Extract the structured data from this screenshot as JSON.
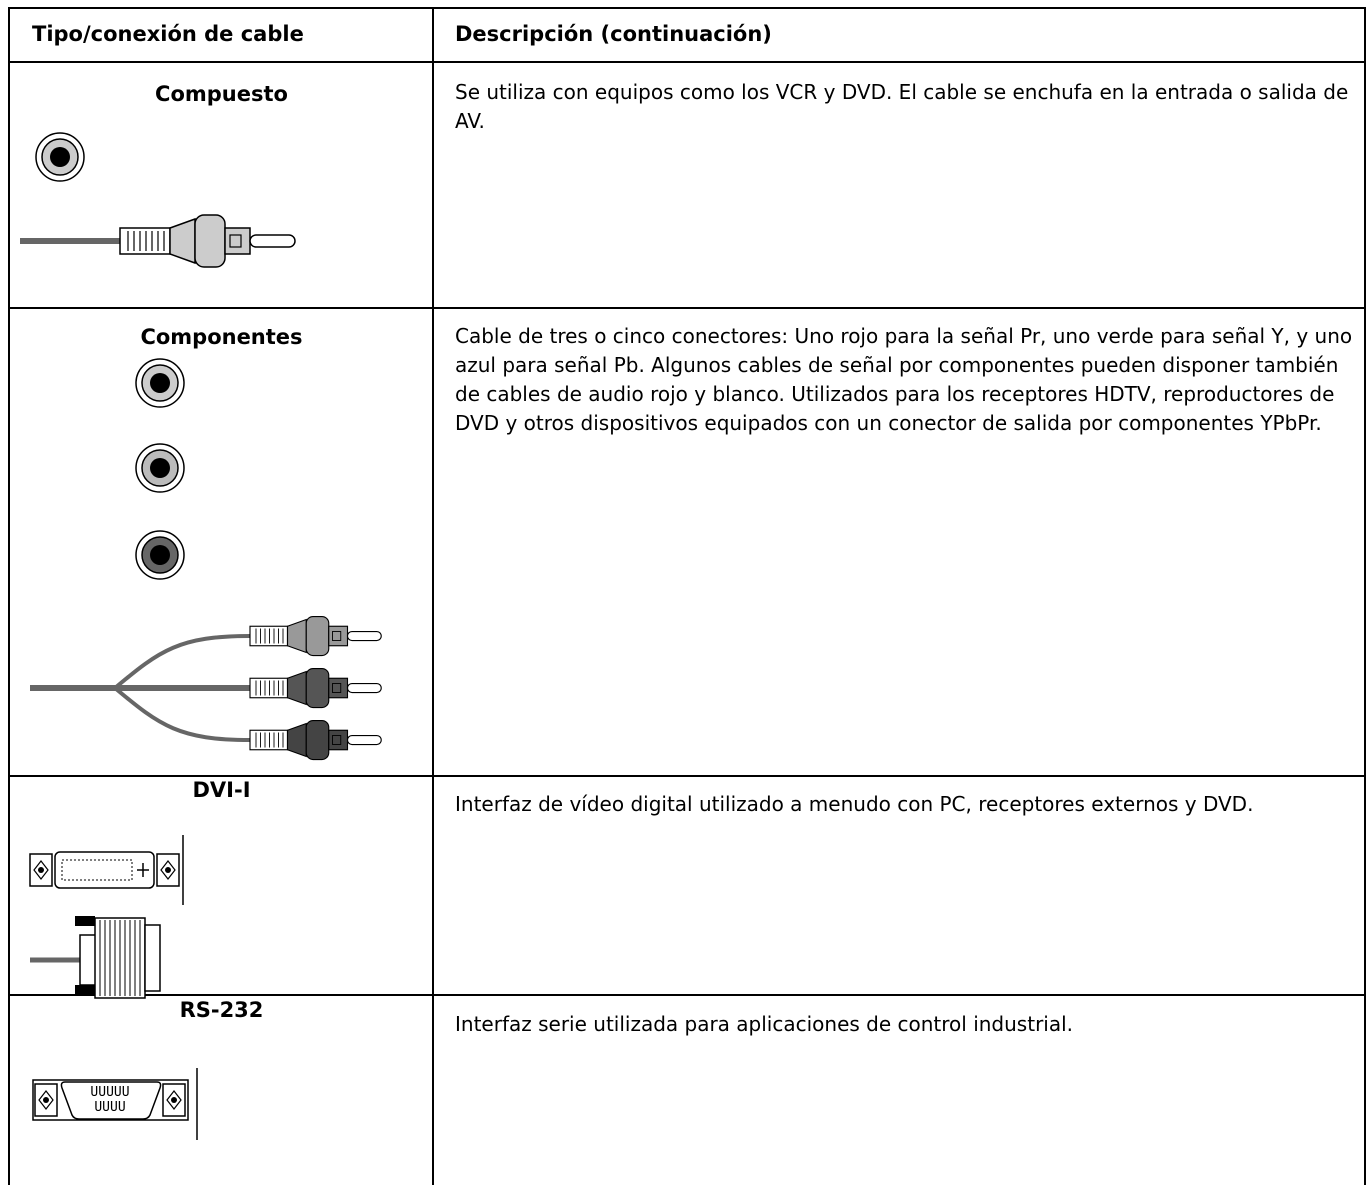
{
  "table": {
    "header": [
      "Tipo/conexión de cable",
      "Descripción (continuación)"
    ],
    "rows": [
      [
        "Compuesto",
        "Se utiliza con equipos como los VCR y DVD. El cable se enchufa en la entrada o salida de AV."
      ],
      [
        "Componentes",
        "Cable de tres o cinco conectores: Uno rojo para la señal Pr, uno verde para señal Y, y uno azul para señal Pb. Algunos cables de señal por componentes pueden disponer también de cables de audio rojo y blanco. Utilizados para los receptores HDTV, reproductores de DVD y otros dispositivos equipados con un conector de salida por componentes YPbPr."
      ],
      [
        "DVI-I",
        "Interfaz de vídeo digital utilizado a menudo con PC, receptores externos y DVD."
      ],
      [
        "RS-232",
        "Interfaz serie utilizada para aplicaciones de control industrial."
      ]
    ]
  }
}
